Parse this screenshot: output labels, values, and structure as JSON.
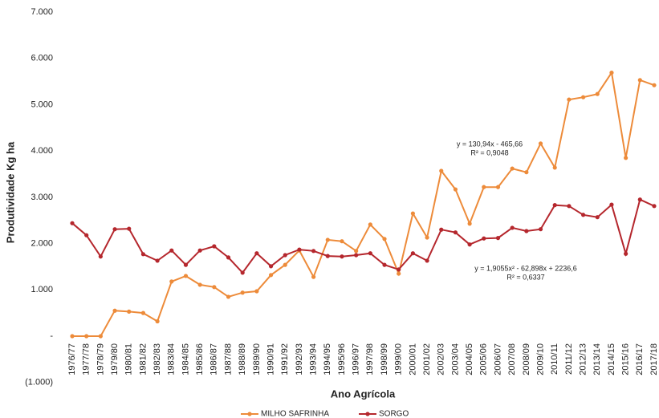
{
  "chart_data": {
    "type": "line",
    "x_label": "Ano Agrícola",
    "y_label": "Produtividade Kg ha",
    "categories": [
      "1976/77",
      "1977/78",
      "1978/79",
      "1979/80",
      "1980/81",
      "1981/82",
      "1982/83",
      "1983/84",
      "1984/85",
      "1985/86",
      "1986/87",
      "1987/88",
      "1988/89",
      "1989/90",
      "1990/91",
      "1991/92",
      "1992/93",
      "1993/94",
      "1994/95",
      "1995/96",
      "1996/97",
      "1997/98",
      "1998/99",
      "1999/00",
      "2000/01",
      "2001/02",
      "2002/03",
      "2003/04",
      "2004/05",
      "2005/06",
      "2006/07",
      "2007/08",
      "2008/09",
      "2009/10",
      "2010/11",
      "2011/12",
      "2012/13",
      "2013/14",
      "2014/15",
      "2015/16",
      "2016/17",
      "2017/18"
    ],
    "series": [
      {
        "name": "MILHO SAFRINHA",
        "color": "#ed8b3a",
        "values": [
          0,
          0,
          0,
          550,
          530,
          500,
          320,
          1180,
          1300,
          1110,
          1060,
          850,
          940,
          970,
          1320,
          1540,
          1850,
          1280,
          2080,
          2050,
          1840,
          2410,
          2100,
          1350,
          2650,
          2130,
          3570,
          3170,
          2430,
          3220,
          3220,
          3620,
          3540,
          4160,
          3640,
          5110,
          5160,
          5230,
          5690,
          3850,
          5530,
          5420
        ]
      },
      {
        "name": "SORGO",
        "color": "#b5272d",
        "values": [
          2440,
          2180,
          1720,
          2310,
          2320,
          1770,
          1630,
          1850,
          1540,
          1850,
          1940,
          1700,
          1370,
          1790,
          1510,
          1750,
          1870,
          1840,
          1730,
          1720,
          1750,
          1790,
          1540,
          1440,
          1790,
          1630,
          2300,
          2240,
          1980,
          2110,
          2120,
          2340,
          2270,
          2310,
          2830,
          2810,
          2620,
          2570,
          2840,
          1780,
          2950,
          2810
        ]
      }
    ],
    "ylim": [
      -1000,
      7000
    ],
    "yticks": [
      {
        "value": -1000,
        "label": "(1.000)"
      },
      {
        "value": 0,
        "label": "-"
      },
      {
        "value": 1000,
        "label": "1.000"
      },
      {
        "value": 2000,
        "label": "2.000"
      },
      {
        "value": 3000,
        "label": "3.000"
      },
      {
        "value": 4000,
        "label": "4.000"
      },
      {
        "value": 5000,
        "label": "5.000"
      },
      {
        "value": 6000,
        "label": "6.000"
      },
      {
        "value": 7000,
        "label": "7.000"
      }
    ],
    "annotations": [
      "y = 130,94x - 465,66",
      "R² = 0,9048",
      "y = 1,9055x² - 62,898x + 2236,6",
      "R² = 0,6337"
    ]
  }
}
